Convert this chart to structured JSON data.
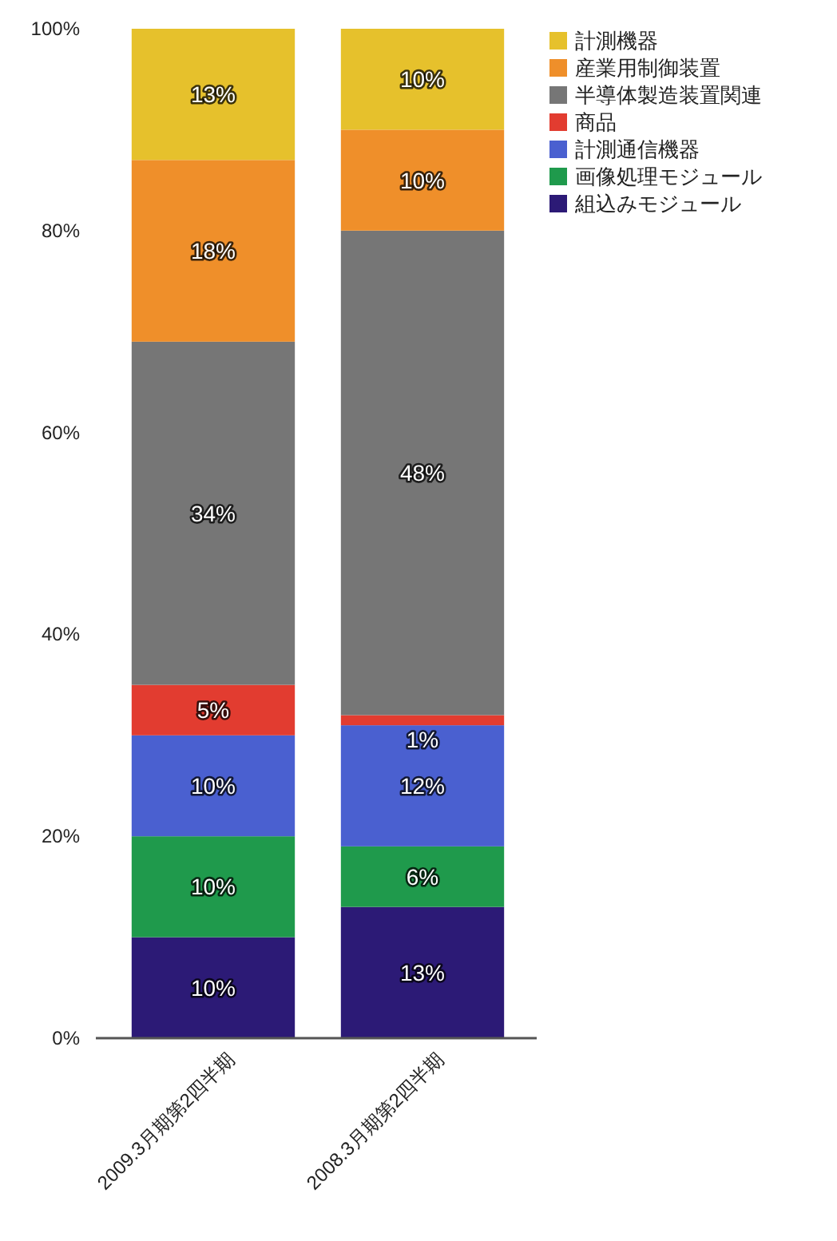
{
  "chart_data": {
    "type": "bar",
    "stacked": true,
    "categories": [
      "2009.3月期第2四半期",
      "2008.3月期第2四半期"
    ],
    "series": [
      {
        "name": "組込みモジュール",
        "color": "#2c1a76",
        "values": [
          10,
          13
        ],
        "value_labels": [
          "10%",
          "13%"
        ]
      },
      {
        "name": "画像処理モジュール",
        "color": "#1f9a4c",
        "values": [
          10,
          6
        ],
        "value_labels": [
          "10%",
          "6%"
        ]
      },
      {
        "name": "計測通信機器",
        "color": "#4a60d0",
        "values": [
          10,
          12
        ],
        "value_labels": [
          "10%",
          "12%"
        ]
      },
      {
        "name": "商品",
        "color": "#e23c30",
        "values": [
          5,
          1
        ],
        "value_labels": [
          "5%",
          "1%"
        ]
      },
      {
        "name": "半導体製造装置関連",
        "color": "#767676",
        "values": [
          34,
          48
        ],
        "value_labels": [
          "34%",
          "48%"
        ]
      },
      {
        "name": "産業用制御装置",
        "color": "#ef8f2a",
        "values": [
          18,
          10
        ],
        "value_labels": [
          "18%",
          "10%"
        ]
      },
      {
        "name": "計測機器",
        "color": "#e6c12c",
        "values": [
          13,
          10
        ],
        "value_labels": [
          "13%",
          "10%"
        ]
      }
    ],
    "ylim": [
      0,
      100
    ],
    "yticks": [
      {
        "value": 0,
        "label": "0%"
      },
      {
        "value": 20,
        "label": "20%"
      },
      {
        "value": 40,
        "label": "40%"
      },
      {
        "value": 60,
        "label": "60%"
      },
      {
        "value": 80,
        "label": "80%"
      },
      {
        "value": 100,
        "label": "100%"
      }
    ],
    "legend": "right",
    "grid": false
  }
}
